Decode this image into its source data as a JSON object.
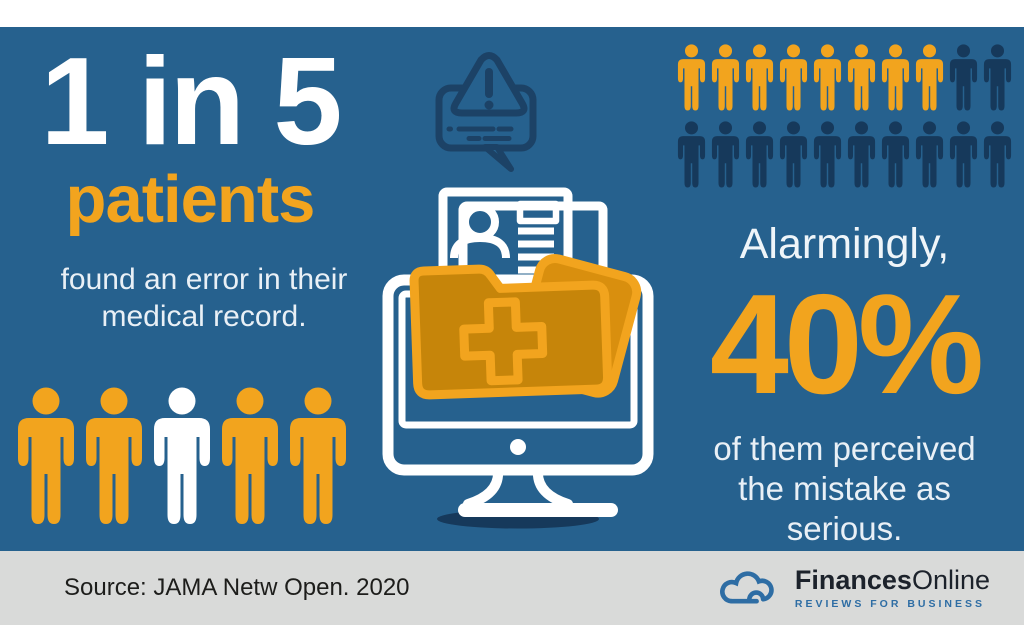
{
  "colors": {
    "panel_blue": "#26618E",
    "footer_gray": "#D9DAD9",
    "orange": "#F2A41E",
    "folder_fill": "#C6850A",
    "flap_fill": "#D98F0E",
    "navy": "#16395B",
    "icon_navy": "#1C4266",
    "white": "#FFFFFF",
    "light_text": "#E9F0F6",
    "logo_blue": "#2E6DA4",
    "dark_text": "#1D1D1B"
  },
  "left_panel": {
    "headline": "1 in 5",
    "subheadline": "patients",
    "description": [
      "found an error in their",
      "medical record."
    ],
    "pictograph": [
      "orange",
      "orange",
      "white",
      "orange",
      "orange"
    ]
  },
  "right_panel": {
    "pictograph_rows": [
      [
        "orange",
        "orange",
        "orange",
        "orange",
        "orange",
        "orange",
        "orange",
        "orange",
        "navy",
        "navy"
      ],
      [
        "navy",
        "navy",
        "navy",
        "navy",
        "navy",
        "navy",
        "navy",
        "navy",
        "navy",
        "navy"
      ]
    ],
    "lead_in": "Alarmingly,",
    "statistic": "40%",
    "description": [
      "of them perceived",
      "the mistake as",
      "serious."
    ]
  },
  "footer": {
    "source": "Source: JAMA Netw Open. 2020",
    "brand": {
      "bold": "Finances",
      "regular": "Online",
      "tagline": "REVIEWS FOR BUSINESS"
    }
  },
  "chart_data": [
    {
      "type": "pictograph",
      "title": "1 in 5 patients found an error in their medical record.",
      "total_icons": 5,
      "highlighted_icons": 1,
      "value": 0.2,
      "highlight_color": "#FFFFFF",
      "base_color": "#F2A41E",
      "legend_position": "none"
    },
    {
      "type": "pictograph",
      "title": "Alarmingly, 40% of them perceived the mistake as serious.",
      "total_icons": 20,
      "highlighted_icons": 8,
      "value": 0.4,
      "highlight_color": "#F2A41E",
      "base_color": "#16395B",
      "legend_position": "none"
    }
  ]
}
